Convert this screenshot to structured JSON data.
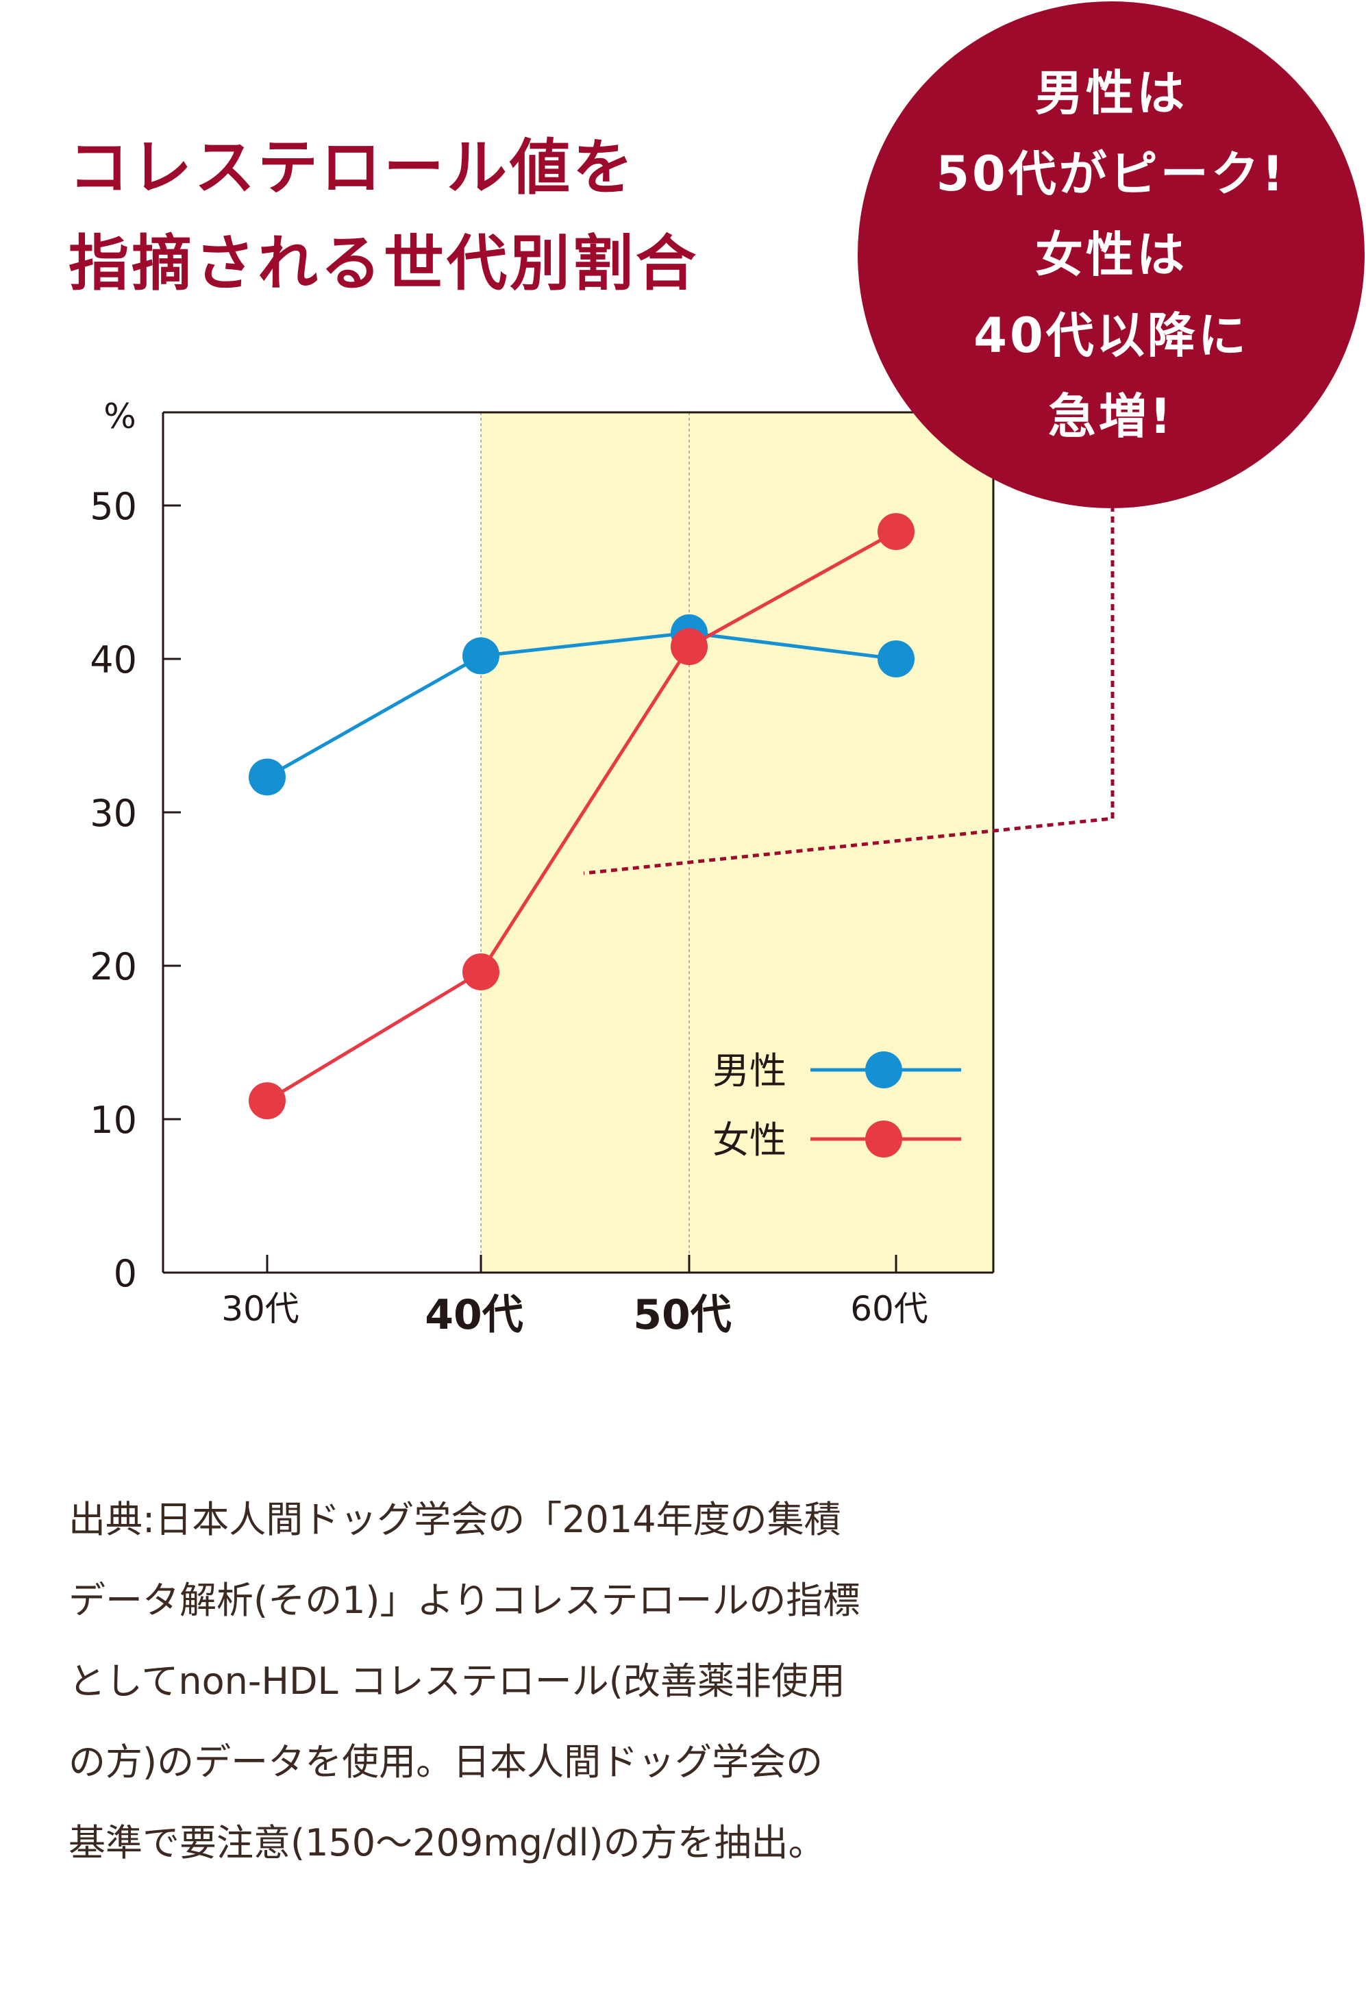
{
  "colors": {
    "accent": "#9e0a2b",
    "men": "#1591d3",
    "women": "#e63a45",
    "highlight": "#fcf8c8",
    "text": "#231815",
    "note_text": "#3c2a22"
  },
  "title": {
    "lines": [
      "コレステロール値を",
      "指摘される世代別割合"
    ]
  },
  "callout": {
    "lines": [
      "男性は",
      "50代がピーク!",
      "女性は",
      "40代以降に",
      "急増!"
    ]
  },
  "chart_data": {
    "type": "line",
    "unit_label": "%",
    "categories": [
      "30代",
      "40代",
      "50代",
      "60代"
    ],
    "highlighted_categories": [
      "40代",
      "50代"
    ],
    "y_ticks": [
      0,
      10,
      20,
      30,
      40,
      50
    ],
    "ylim": [
      0,
      56
    ],
    "grid": false,
    "legend_position": "bottom-right",
    "series": [
      {
        "name": "男性",
        "values": [
          32.3,
          40.2,
          41.7,
          40.0
        ]
      },
      {
        "name": "女性",
        "values": [
          11.2,
          19.6,
          40.8,
          48.3
        ]
      }
    ]
  },
  "note": {
    "lines": [
      "出典:日本人間ドッグ学会の「2014年度の集積",
      "データ解析(その1)」よりコレステロールの指標",
      "としてnon-HDL コレステロール(改善薬非使用",
      "の方)のデータを使用。日本人間ドッグ学会の",
      "基準で要注意(150〜209mg/dl)の方を抽出。"
    ]
  }
}
